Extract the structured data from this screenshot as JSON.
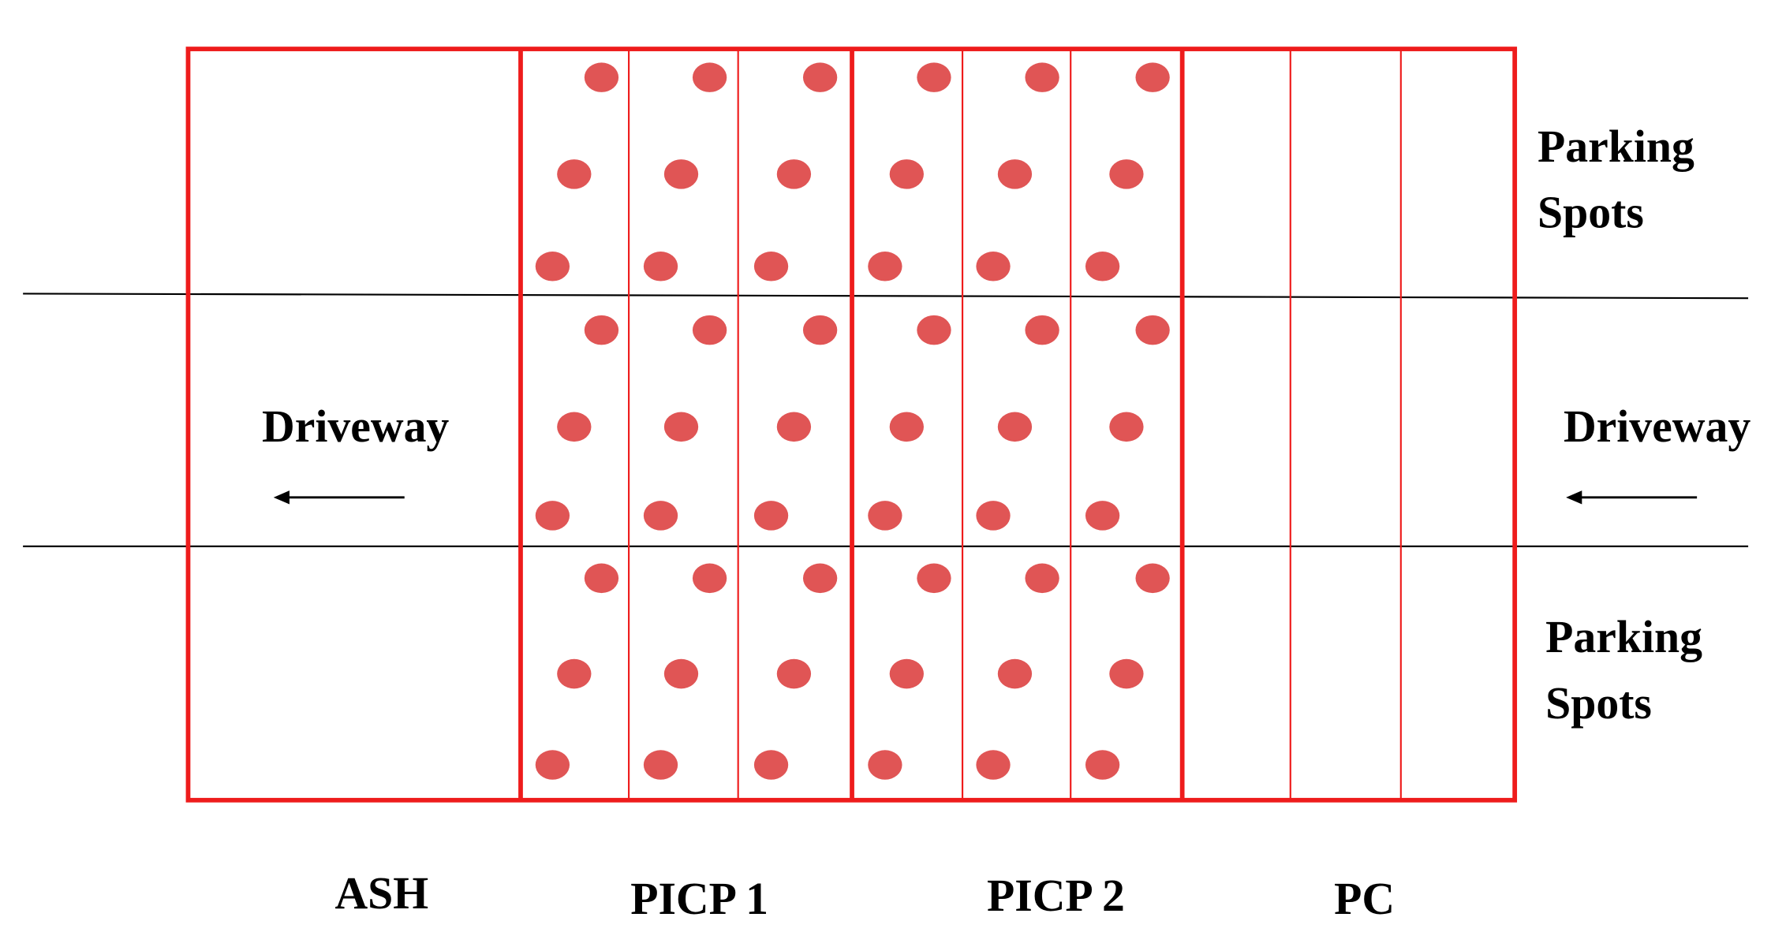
{
  "labels": {
    "top_right": {
      "lines": [
        "Parking",
        "Spots"
      ]
    },
    "bottom_right": {
      "lines": [
        "Parking",
        "Spots"
      ]
    },
    "driveway_left": "Driveway",
    "driveway_right": "Driveway"
  },
  "sections": [
    "ASH",
    "PICP 1",
    "PICP 2",
    "PC"
  ]
}
